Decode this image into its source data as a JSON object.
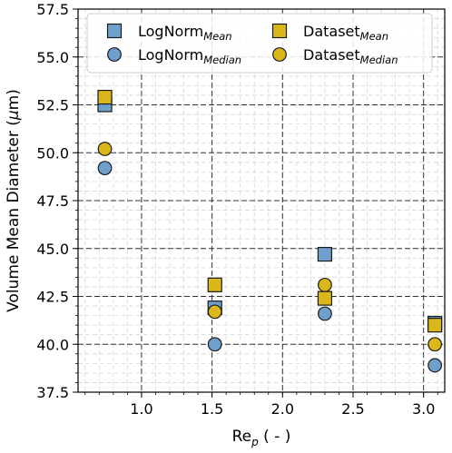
{
  "chart_data": {
    "type": "scatter",
    "xlabel": {
      "base": "Re",
      "sub": "p",
      "suffix": " ( - )"
    },
    "ylabel": {
      "before": "Volume Mean Diameter (",
      "mu": "μ",
      "after": "m)"
    },
    "xlim": [
      0.55,
      3.15
    ],
    "ylim": [
      37.5,
      57.5
    ],
    "xticks": [
      1.0,
      1.5,
      2.0,
      2.5,
      3.0
    ],
    "xtick_labels": [
      "1.0",
      "1.5",
      "2.0",
      "2.5",
      "3.0"
    ],
    "yticks": [
      37.5,
      40.0,
      42.5,
      45.0,
      47.5,
      50.0,
      52.5,
      55.0,
      57.5
    ],
    "ytick_labels": [
      "37.5",
      "40.0",
      "42.5",
      "45.0",
      "47.5",
      "50.0",
      "52.5",
      "55.0",
      "57.5"
    ],
    "x_minor_step": 0.1,
    "y_minor_step": 0.5,
    "grid": true,
    "legend_position": "top",
    "series": [
      {
        "name_base": "LogNorm",
        "name_sub": "Mean",
        "marker": "square",
        "color": "#6fa0cc",
        "points": [
          [
            0.74,
            52.5
          ],
          [
            1.52,
            41.9
          ],
          [
            2.3,
            44.7
          ],
          [
            3.08,
            41.1
          ]
        ]
      },
      {
        "name_base": "LogNorm",
        "name_sub": "Median",
        "marker": "circle",
        "color": "#6fa0cc",
        "points": [
          [
            0.74,
            49.2
          ],
          [
            1.52,
            40.0
          ],
          [
            2.3,
            41.6
          ],
          [
            3.08,
            38.9
          ]
        ]
      },
      {
        "name_base": "Dataset",
        "name_sub": "Mean",
        "marker": "square",
        "color": "#dab81b",
        "points": [
          [
            0.74,
            52.9
          ],
          [
            1.52,
            43.1
          ],
          [
            2.3,
            42.4
          ],
          [
            3.08,
            41.0
          ]
        ]
      },
      {
        "name_base": "Dataset",
        "name_sub": "Median",
        "marker": "circle",
        "color": "#dab81b",
        "points": [
          [
            0.74,
            50.2
          ],
          [
            1.52,
            41.7
          ],
          [
            2.3,
            43.1
          ],
          [
            3.08,
            40.0
          ]
        ]
      }
    ]
  }
}
